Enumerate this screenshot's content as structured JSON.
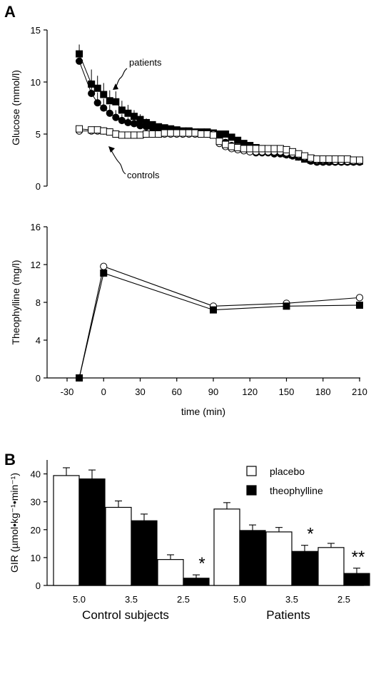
{
  "panel_letters": [
    "A",
    "B"
  ],
  "chart_data": [
    {
      "type": "scatter",
      "ylabel": "Glucose (mmol/l)",
      "xlabel": "",
      "ylim": [
        0,
        15
      ],
      "xlim": [
        -30,
        210
      ],
      "yticks": [
        "0",
        "5",
        "10",
        "15"
      ],
      "grid": false,
      "annotations": [
        "patients",
        "controls"
      ],
      "series": [
        {
          "marker": "filled-square",
          "x": [
            -20,
            -10,
            -5,
            0,
            5,
            10,
            15,
            20,
            25,
            30,
            35,
            40,
            45,
            50,
            55,
            60,
            65,
            70,
            75,
            80,
            85,
            90,
            95,
            100,
            105,
            110,
            115,
            120,
            125,
            130,
            135,
            140,
            145,
            150,
            155,
            160,
            165,
            170,
            175,
            180,
            185,
            190,
            195,
            200,
            205,
            210
          ],
          "y": [
            12.7,
            9.8,
            9.4,
            8.8,
            8.2,
            8.1,
            7.3,
            7.0,
            6.7,
            6.4,
            6.1,
            5.9,
            5.7,
            5.6,
            5.5,
            5.4,
            5.3,
            5.3,
            5.2,
            5.2,
            5.2,
            5.1,
            5.0,
            5.0,
            4.7,
            4.4,
            4.1,
            3.9,
            3.7,
            3.6,
            3.5,
            3.4,
            3.3,
            3.1,
            3.0,
            2.8,
            2.6,
            2.5,
            2.5,
            2.4,
            2.4,
            2.4,
            2.4,
            2.4,
            2.4,
            2.4
          ],
          "error": [
            0.9,
            1.4,
            1.2,
            1.1,
            1.0,
            1.0,
            0.9,
            0.8,
            0.6,
            0.5,
            0.4,
            0.3,
            0.3,
            0.2,
            0.2,
            0.2,
            0.2,
            0.2,
            0.2,
            0.2,
            0.2,
            0.2,
            0.2,
            0.2,
            0.2,
            0.2,
            0.2,
            0.2,
            0.2,
            0.2,
            0.2,
            0.2,
            0.2,
            0.2,
            0.2,
            0.2,
            0.2,
            0.2,
            0.2,
            0.2,
            0.2,
            0.2,
            0.2,
            0.2,
            0.2,
            0.2
          ]
        },
        {
          "marker": "filled-circle",
          "x": [
            -20,
            -10,
            -5,
            0,
            5,
            10,
            15,
            20,
            25,
            30,
            35,
            40,
            45,
            50,
            55,
            60,
            65,
            70,
            75,
            80,
            85,
            90,
            95,
            100,
            105,
            110,
            115,
            120,
            125,
            130,
            135,
            140,
            145,
            150,
            155,
            160,
            165,
            170,
            175,
            180,
            185,
            190,
            195,
            200,
            205,
            210
          ],
          "y": [
            12.0,
            8.9,
            8.0,
            7.5,
            7.0,
            6.6,
            6.3,
            6.1,
            6.0,
            5.8,
            5.7,
            5.6,
            5.5,
            5.4,
            5.3,
            5.2,
            5.2,
            5.1,
            5.1,
            5.1,
            5.0,
            5.0,
            4.6,
            4.2,
            3.9,
            3.7,
            3.5,
            3.3,
            3.2,
            3.2,
            3.2,
            3.1,
            3.1,
            3.0,
            2.9,
            2.8,
            2.6,
            2.4,
            2.3,
            2.3,
            2.3,
            2.3,
            2.3,
            2.3,
            2.3,
            2.3
          ],
          "error": [
            0.8,
            1.3,
            1.0,
            0.9,
            0.8,
            0.7,
            0.6,
            0.5,
            0.4,
            0.3,
            0.3,
            0.2,
            0.2,
            0.2,
            0.2,
            0.2,
            0.2,
            0.2,
            0.2,
            0.2,
            0.2,
            0.2,
            0.2,
            0.2,
            0.2,
            0.2,
            0.2,
            0.2,
            0.2,
            0.2,
            0.2,
            0.2,
            0.2,
            0.2,
            0.2,
            0.2,
            0.2,
            0.2,
            0.2,
            0.2,
            0.2,
            0.2,
            0.2,
            0.2,
            0.2,
            0.2
          ]
        },
        {
          "marker": "open-circle",
          "x": [
            -20,
            -10,
            -5,
            0,
            5,
            10,
            15,
            20,
            25,
            30,
            35,
            40,
            45,
            50,
            55,
            60,
            65,
            70,
            75,
            80,
            85,
            90,
            95,
            100,
            105,
            110,
            115,
            120,
            125,
            130,
            135,
            140,
            145,
            150,
            155,
            160,
            165,
            170,
            175,
            180,
            185,
            190,
            195,
            200,
            205,
            210
          ],
          "y": [
            5.3,
            5.3,
            5.3,
            5.3,
            5.2,
            5.0,
            4.9,
            4.9,
            4.9,
            4.9,
            5.0,
            5.0,
            5.0,
            5.0,
            5.0,
            5.0,
            5.0,
            5.0,
            5.0,
            5.0,
            5.0,
            5.0,
            4.1,
            3.8,
            3.6,
            3.5,
            3.4,
            3.3,
            3.3,
            3.3,
            3.3,
            3.3,
            3.3,
            3.2,
            3.1,
            3.0,
            2.8,
            2.6,
            2.5,
            2.5,
            2.5,
            2.4,
            2.4,
            2.4,
            2.4,
            2.4
          ],
          "error": []
        },
        {
          "marker": "open-square",
          "x": [
            -20,
            -10,
            -5,
            0,
            5,
            10,
            15,
            20,
            25,
            30,
            35,
            40,
            45,
            50,
            55,
            60,
            65,
            70,
            75,
            80,
            85,
            90,
            95,
            100,
            105,
            110,
            115,
            120,
            125,
            130,
            135,
            140,
            145,
            150,
            155,
            160,
            165,
            170,
            175,
            180,
            185,
            190,
            195,
            200,
            205,
            210
          ],
          "y": [
            5.5,
            5.4,
            5.4,
            5.3,
            5.2,
            5.0,
            4.9,
            4.9,
            4.9,
            4.9,
            5.0,
            5.0,
            5.0,
            5.1,
            5.1,
            5.1,
            5.1,
            5.1,
            5.1,
            5.0,
            5.0,
            4.9,
            4.3,
            4.0,
            3.8,
            3.7,
            3.6,
            3.6,
            3.6,
            3.6,
            3.6,
            3.6,
            3.6,
            3.5,
            3.3,
            3.1,
            2.9,
            2.7,
            2.6,
            2.6,
            2.6,
            2.6,
            2.6,
            2.6,
            2.5,
            2.5
          ],
          "error": []
        }
      ]
    },
    {
      "type": "line",
      "ylabel": "Theophylline (mg/l)",
      "xlabel": "time (min)",
      "ylim": [
        0,
        16
      ],
      "xlim": [
        -30,
        210
      ],
      "yticks": [
        "0",
        "4",
        "8",
        "12",
        "16"
      ],
      "xticks": [
        "-30",
        "0",
        "30",
        "60",
        "90",
        "120",
        "150",
        "180",
        "210"
      ],
      "grid": false,
      "series": [
        {
          "marker": "open-circle",
          "x": [
            -20,
            0,
            90,
            150,
            210
          ],
          "y": [
            0,
            11.8,
            7.6,
            7.9,
            8.5
          ]
        },
        {
          "marker": "filled-square",
          "x": [
            -20,
            0,
            90,
            150,
            210
          ],
          "y": [
            0,
            11.1,
            7.2,
            7.6,
            7.7
          ]
        }
      ]
    },
    {
      "type": "bar",
      "ylabel": "GIR (µmol•kg⁻¹•min⁻¹)",
      "ylim": [
        0,
        45
      ],
      "yticks": [
        "0",
        "10",
        "20",
        "30",
        "40"
      ],
      "categories": [
        "5.0",
        "3.5",
        "2.5",
        "5.0",
        "3.5",
        "2.5"
      ],
      "groups": [
        "Control subjects",
        "Patients"
      ],
      "legend": "top-right",
      "series": [
        {
          "name": "placebo",
          "color": "#ffffff",
          "values": [
            39.4,
            28.0,
            9.3,
            27.4,
            19.2,
            13.6
          ],
          "errors": [
            2.8,
            2.3,
            1.7,
            2.3,
            1.6,
            1.5
          ]
        },
        {
          "name": "theophylline",
          "color": "#000000",
          "values": [
            38.2,
            23.2,
            2.6,
            19.7,
            12.2,
            4.3
          ],
          "errors": [
            3.2,
            2.4,
            1.2,
            2.0,
            2.2,
            1.9
          ]
        }
      ],
      "significance": [
        {
          "category_index": 2,
          "label": "*"
        },
        {
          "category_index": 4,
          "label": "*"
        },
        {
          "category_index": 5,
          "label": "**"
        }
      ]
    }
  ]
}
